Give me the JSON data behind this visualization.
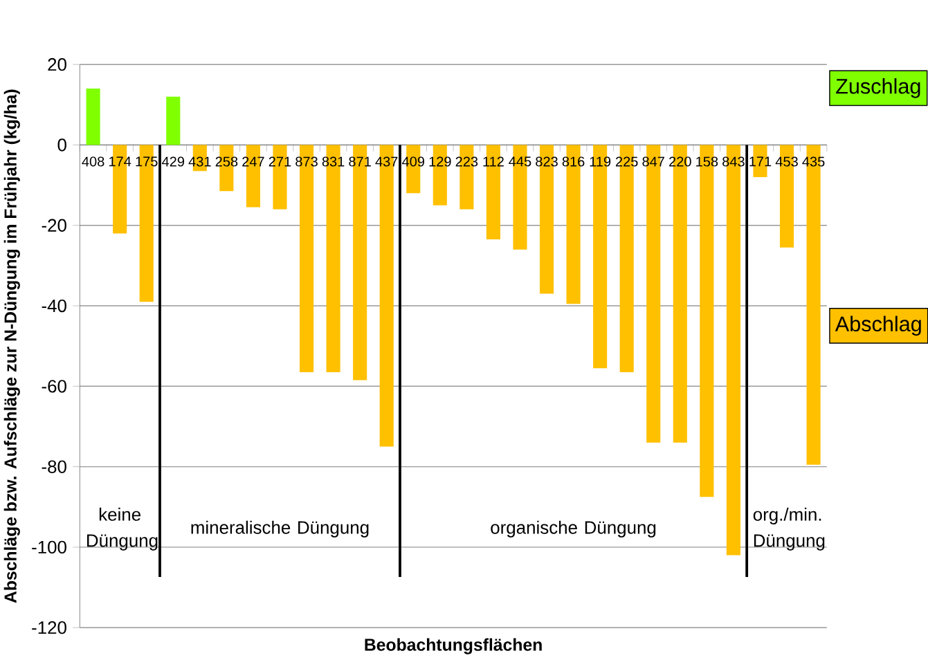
{
  "chart_data": {
    "type": "bar",
    "ylabel": "Abschläge bzw. Aufschläge zur N-Düngung im Frühjahr (kg/ha)",
    "xlabel": "Beobachtungsflächen",
    "categories": [
      "408",
      "174",
      "175",
      "429",
      "431",
      "258",
      "247",
      "271",
      "873",
      "831",
      "871",
      "437",
      "409",
      "129",
      "223",
      "112",
      "445",
      "823",
      "816",
      "119",
      "225",
      "847",
      "220",
      "158",
      "843",
      "171",
      "453",
      "435"
    ],
    "series": [
      {
        "name": "Zuschlag",
        "color": "#80ff00",
        "values": [
          14,
          null,
          null,
          12,
          null,
          null,
          null,
          null,
          null,
          null,
          null,
          null,
          null,
          null,
          null,
          null,
          null,
          null,
          null,
          null,
          null,
          null,
          null,
          null,
          null,
          null,
          null,
          null
        ]
      },
      {
        "name": "Abschlag",
        "color": "#ffc000",
        "values": [
          null,
          -22,
          -39,
          null,
          -6.5,
          -11.5,
          -15.5,
          -16,
          -56.5,
          -56.5,
          -58.5,
          -75,
          -12,
          -15,
          -16,
          -23.5,
          -26,
          -37,
          -39.5,
          -55.5,
          -56.5,
          -74,
          -74,
          -87.5,
          -102,
          -8,
          -25.5,
          -79.5
        ]
      }
    ],
    "ylim": [
      -120,
      20
    ],
    "yticks": [
      -120,
      -100,
      -80,
      -60,
      -40,
      -20,
      0,
      20
    ],
    "grid": "y",
    "legend": "right",
    "annotations": [
      "keine Düngung",
      "mineralische Düngung",
      "organische Düngung",
      "org./min. Düngung"
    ]
  }
}
